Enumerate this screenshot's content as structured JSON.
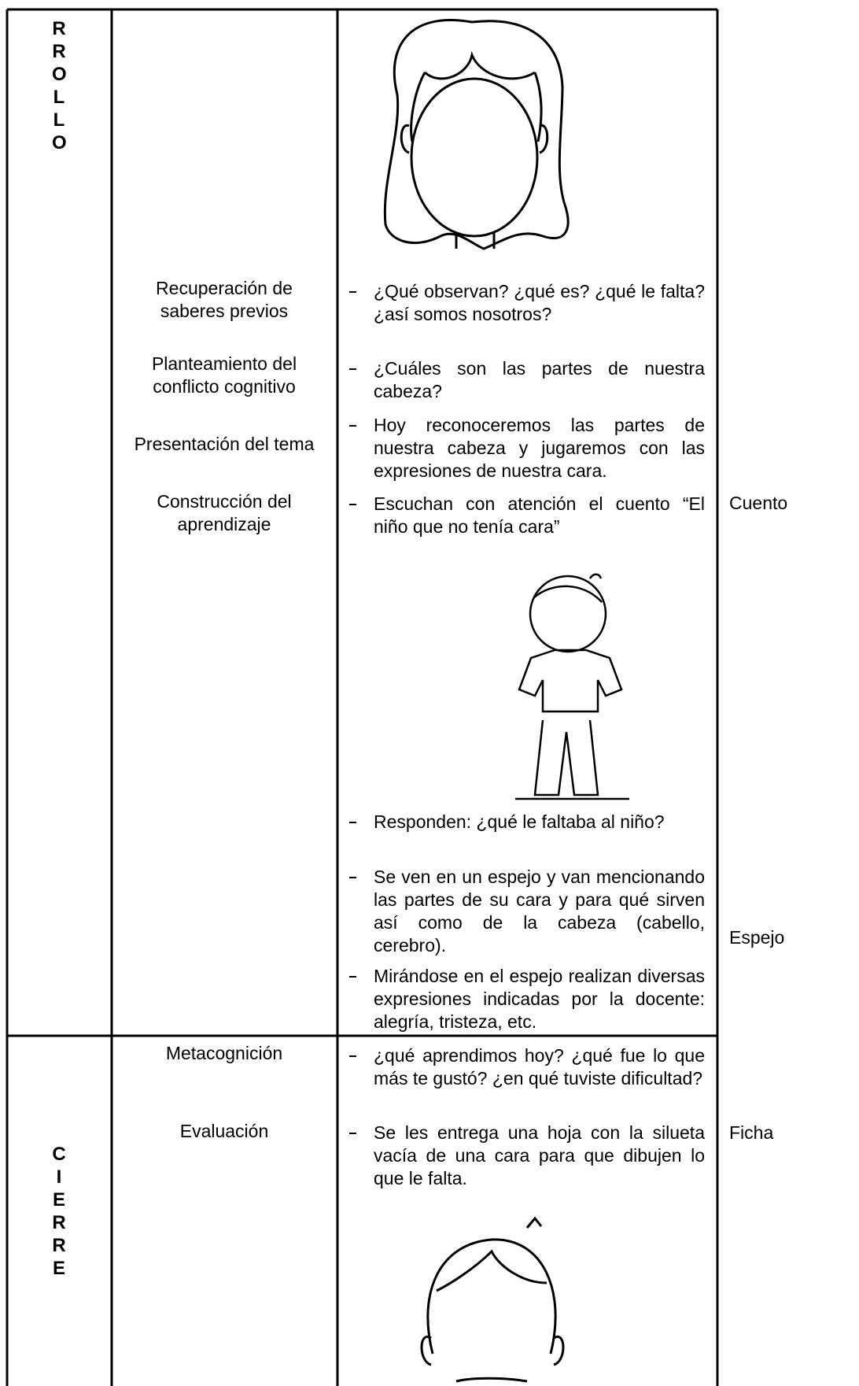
{
  "table": {
    "rows": [
      {
        "stage": "RROLLO",
        "moments": [
          "Recuperación de saberes previos",
          "Planteamiento del conflicto cognitivo",
          "Presentación del tema",
          "Construcción del aprendizaje"
        ],
        "activities": [
          "¿Qué observan? ¿qué es? ¿qué le falta? ¿así somos nosotros?",
          "¿Cuáles son las partes de nuestra cabeza?",
          "Hoy reconoceremos las partes de nuestra cabeza y jugaremos con las expresiones de nuestra cara.",
          "Escuchan con atención el cuento “El niño que no tenía cara”",
          "Responden: ¿qué le faltaba al niño?",
          "Se ven en un espejo y van mencionando las partes de su cara y para qué sirven así como de la cabeza (cabello, cerebro).",
          "Mirándose en el espejo realizan diversas expresiones indicadas por la docente: alegría, tristeza, etc."
        ],
        "resources": [
          "Cuento",
          "Espejo"
        ]
      },
      {
        "stage": "CIERRE",
        "moments": [
          "Metacognición",
          "Evaluación"
        ],
        "activities": [
          "¿qué aprendimos hoy? ¿qué fue lo que más te gustó? ¿en qué tuviste dificultad?",
          "Se les entrega una hoja con la silueta vacía de una cara para que dibujen lo que le falta."
        ],
        "resources": [
          "Ficha"
        ]
      }
    ]
  }
}
